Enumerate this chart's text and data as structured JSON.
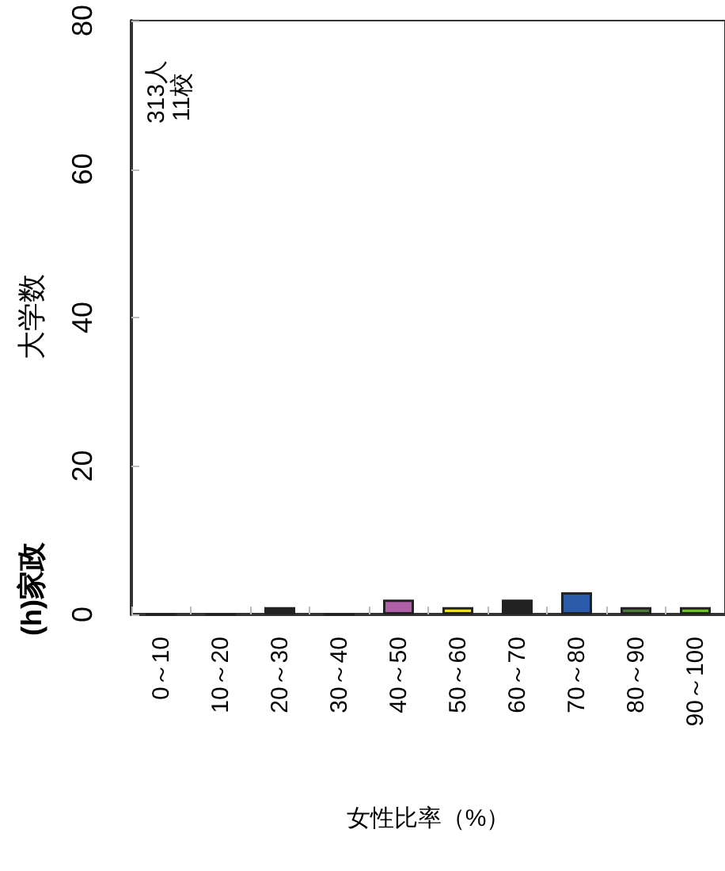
{
  "chart_data": {
    "type": "bar",
    "title": "(h)家政",
    "xlabel": "女性比率（%）",
    "ylabel": "大学数",
    "annotations": [
      "313人",
      "11校"
    ],
    "categories": [
      "0～10",
      "10～20",
      "20～30",
      "30～40",
      "40～50",
      "50～60",
      "60～70",
      "70～80",
      "80～90",
      "90～100"
    ],
    "values": [
      0,
      0,
      1,
      0,
      2,
      1,
      2,
      3,
      1,
      1
    ],
    "colors": [
      "#222222",
      "#222222",
      "#222222",
      "#222222",
      "#b060a8",
      "#f0e020",
      "#222222",
      "#2a5aa8",
      "#4a7a3a",
      "#6cbf3c"
    ],
    "ylim": [
      0,
      80
    ],
    "yticks": [
      0,
      20,
      40,
      60,
      80
    ],
    "grid": false
  }
}
